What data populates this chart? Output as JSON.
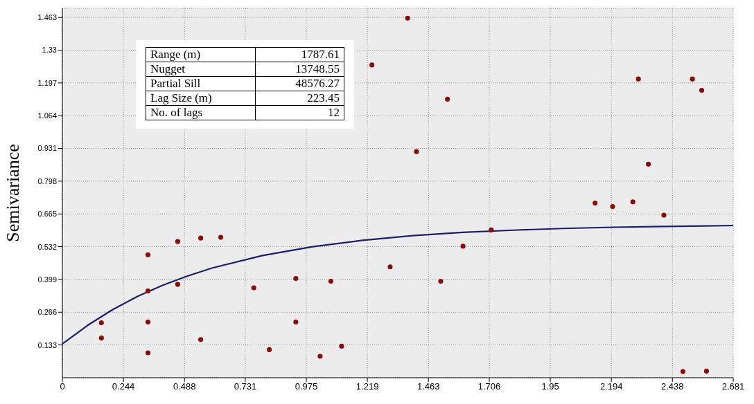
{
  "chart_data": {
    "type": "scatter",
    "ylabel": "Semivariance",
    "xlim": [
      0,
      2.681
    ],
    "xticks": [
      0,
      0.244,
      0.488,
      0.731,
      0.975,
      1.219,
      1.463,
      1.706,
      1.95,
      2.194,
      2.438,
      2.681
    ],
    "ylim": [
      0,
      1.5
    ],
    "yticks": [
      0.133,
      0.266,
      0.399,
      0.532,
      0.665,
      0.798,
      0.931,
      1.064,
      1.197,
      1.33,
      1.463
    ],
    "grid": true,
    "annotations": [
      "Range (m)",
      "1787.61",
      "Nugget",
      "13748.55",
      "Partial Sill",
      "48576.27",
      "Lag Size (m)",
      "223.45",
      "No. of lags",
      "12"
    ],
    "series": [
      {
        "type": "scatter",
        "marker": "circle",
        "color": "#8b0a0a",
        "x": [
          0.156,
          0.156,
          0.342,
          0.342,
          0.342,
          0.342,
          0.461,
          0.461,
          0.553,
          0.553,
          0.633,
          0.765,
          0.827,
          0.933,
          0.933,
          1.03,
          1.073,
          1.116,
          1.237,
          1.31,
          1.38,
          1.415,
          1.512,
          1.539,
          1.601,
          1.714,
          2.129,
          2.199,
          2.28,
          2.302,
          2.342,
          2.404,
          2.48,
          2.518,
          2.555,
          2.574
        ],
        "values": [
          0.223,
          0.161,
          0.499,
          0.352,
          0.226,
          0.101,
          0.553,
          0.379,
          0.567,
          0.155,
          0.57,
          0.365,
          0.114,
          0.403,
          0.226,
          0.087,
          0.392,
          0.128,
          1.27,
          0.45,
          1.46,
          0.918,
          0.392,
          1.131,
          0.534,
          0.6,
          0.709,
          0.695,
          0.714,
          1.213,
          0.867,
          0.66,
          0.025,
          1.213,
          1.167,
          0.027
        ]
      },
      {
        "type": "line",
        "color": "#1c1c6e",
        "line_style": "solid",
        "x": [
          0,
          0.1,
          0.2,
          0.3,
          0.4,
          0.5,
          0.6,
          0.8,
          1.0,
          1.2,
          1.4,
          1.6,
          1.8,
          2.0,
          2.2,
          2.4,
          2.681
        ],
        "values": [
          0.137,
          0.212,
          0.276,
          0.33,
          0.375,
          0.413,
          0.446,
          0.496,
          0.532,
          0.558,
          0.577,
          0.59,
          0.599,
          0.606,
          0.611,
          0.614,
          0.618
        ]
      }
    ]
  }
}
